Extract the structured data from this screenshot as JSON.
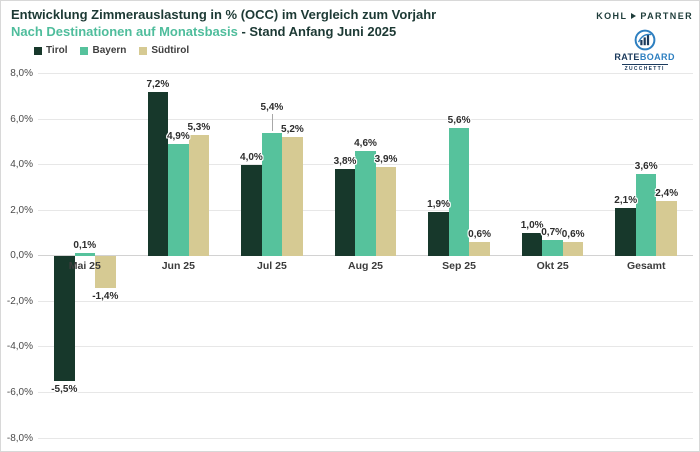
{
  "header": {
    "title": "Entwicklung Zimmerauslastung in % (OCC) im Vergleich zum Vorjahr",
    "subtitle_highlight": "Nach Destinationen auf Monatsbasis",
    "subtitle_rest": " - Stand Anfang Juni 2025"
  },
  "branding": {
    "kohl": "KOHL",
    "partner": "PARTNER",
    "rateboard_rate": "RATE",
    "rateboard_board": "BOARD",
    "zucchetti": "ZUCCHETTI"
  },
  "colors": {
    "title_text": "#1c3934",
    "subtitle_accent": "#4fbd9c",
    "kohl_partner": "#1e3c3a",
    "rateboard_navy": "#1b3a5c",
    "rateboard_blue": "#2d7fc0",
    "gridline": "#e7e7e7"
  },
  "chart_data": {
    "type": "bar",
    "title": "Entwicklung Zimmerauslastung in % (OCC) im Vergleich zum Vorjahr",
    "subtitle": "Nach Destinationen auf Monatsbasis - Stand Anfang Juni 2025",
    "categories": [
      "Mai 25",
      "Jun 25",
      "Jul 25",
      "Aug 25",
      "Sep 25",
      "Okt 25",
      "Gesamt"
    ],
    "series": [
      {
        "name": "Tirol",
        "color": "#17382b",
        "values": [
          -5.5,
          7.2,
          4.0,
          3.8,
          1.9,
          1.0,
          2.1
        ],
        "labels": [
          "-5,5%",
          "7,2%",
          "4,0%",
          "3,8%",
          "1,9%",
          "1,0%",
          "2,1%"
        ]
      },
      {
        "name": "Bayern",
        "color": "#56c29c",
        "values": [
          0.1,
          4.9,
          5.4,
          4.6,
          5.6,
          0.7,
          3.6
        ],
        "labels": [
          "0,1%",
          "4,9%",
          "5,4%",
          "4,6%",
          "5,6%",
          "0,7%",
          "3,6%"
        ]
      },
      {
        "name": "Südtirol",
        "color": "#d6ca93",
        "values": [
          -1.4,
          5.3,
          5.2,
          3.9,
          0.6,
          0.6,
          2.4
        ],
        "labels": [
          "-1,4%",
          "5,3%",
          "5,2%",
          "3,9%",
          "0,6%",
          "0,6%",
          "2,4%"
        ]
      }
    ],
    "ylim": [
      -8,
      8
    ],
    "ytick_step": 2,
    "yticks": [
      {
        "value": 8,
        "label": "8,0%"
      },
      {
        "value": 6,
        "label": "6,0%"
      },
      {
        "value": 4,
        "label": "4,0%"
      },
      {
        "value": 2,
        "label": "2,0%"
      },
      {
        "value": 0,
        "label": "0,0%"
      },
      {
        "value": -2,
        "label": "-2,0%"
      },
      {
        "value": -4,
        "label": "-4,0%"
      },
      {
        "value": -6,
        "label": "-6,0%"
      },
      {
        "value": -8,
        "label": "-8,0%"
      }
    ],
    "grid": "horizontal",
    "legend_position": "top-left",
    "callouts": [
      {
        "series": 1,
        "category": 2,
        "raise": 18
      }
    ]
  }
}
